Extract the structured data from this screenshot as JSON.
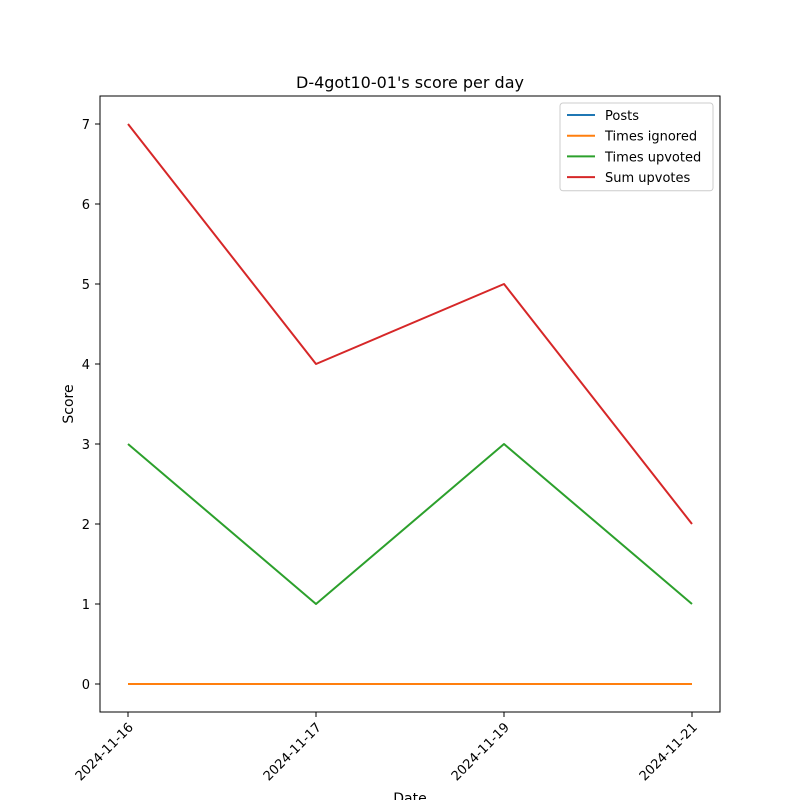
{
  "chart_data": {
    "type": "line",
    "title": "D-4got10-01's score per day",
    "xlabel": "Date",
    "ylabel": "Score",
    "categories": [
      "2024-11-16",
      "2024-11-17",
      "2024-11-19",
      "2024-11-21"
    ],
    "ylim": [
      -0.35,
      7.35
    ],
    "yticks": [
      0,
      1,
      2,
      3,
      4,
      5,
      6,
      7
    ],
    "grid": false,
    "legend_position": "top-right",
    "series": [
      {
        "name": "Posts",
        "color": "#1f77b4",
        "values": [
          0,
          0,
          0,
          0
        ]
      },
      {
        "name": "Times ignored",
        "color": "#ff7f0e",
        "values": [
          0,
          0,
          0,
          0
        ]
      },
      {
        "name": "Times upvoted",
        "color": "#2ca02c",
        "values": [
          3,
          1,
          3,
          1
        ]
      },
      {
        "name": "Sum upvotes",
        "color": "#d62728",
        "values": [
          7,
          4,
          5,
          2
        ]
      }
    ]
  }
}
